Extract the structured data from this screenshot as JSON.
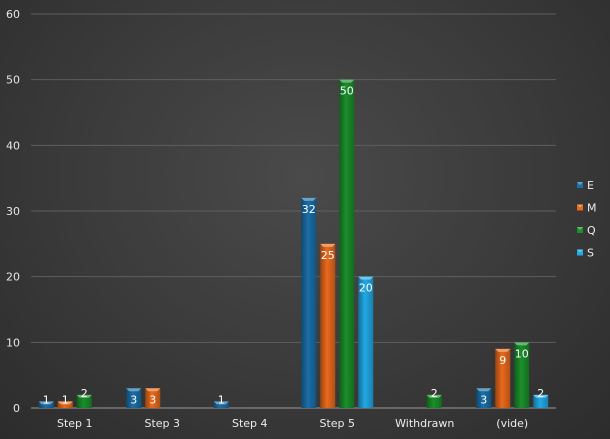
{
  "chart_data": {
    "type": "bar",
    "categories": [
      "Step 1",
      "Step 3",
      "Step 4",
      "Step 5",
      "Withdrawn",
      "(vide)"
    ],
    "series": [
      {
        "name": "E",
        "color": "#1b6fa8",
        "values": [
          1,
          3,
          1,
          32,
          null,
          3
        ]
      },
      {
        "name": "M",
        "color": "#ea6a1c",
        "values": [
          1,
          3,
          null,
          25,
          null,
          9
        ]
      },
      {
        "name": "Q",
        "color": "#1a8f2a",
        "values": [
          2,
          null,
          null,
          50,
          2,
          10
        ]
      },
      {
        "name": "S",
        "color": "#22a9e6",
        "values": [
          null,
          null,
          null,
          20,
          null,
          2
        ]
      }
    ],
    "ylim": [
      0,
      60
    ],
    "yticks": [
      0,
      10,
      20,
      30,
      40,
      50,
      60
    ],
    "grid": true,
    "legend": "right"
  }
}
